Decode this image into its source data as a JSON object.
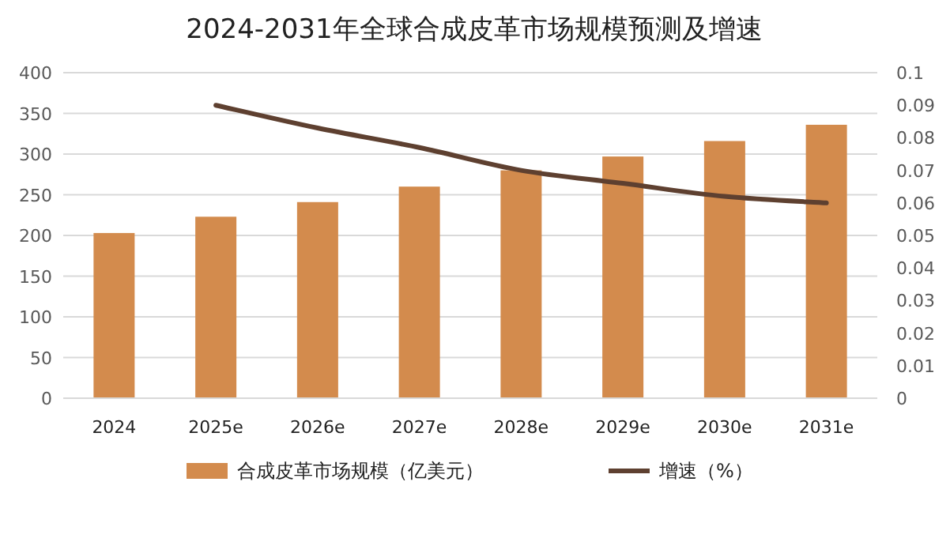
{
  "chart_data": {
    "type": "bar",
    "title": "2024-2031年全球合成皮革市场规模预测及增速",
    "categories": [
      "2024",
      "2025e",
      "2026e",
      "2027e",
      "2028e",
      "2029e",
      "2030e",
      "2031e"
    ],
    "series": [
      {
        "name": "合成皮革市场规模（亿美元）",
        "color": "#d38b4d",
        "values": [
          203,
          223,
          241,
          260,
          280,
          297,
          316,
          336
        ]
      },
      {
        "name": "增速（%）",
        "type": "line",
        "axis": "y2",
        "color": "#5e4030",
        "values": [
          null,
          0.09,
          0.083,
          0.077,
          0.07,
          0.066,
          0.062,
          0.06
        ]
      }
    ],
    "ylim": [
      0,
      400
    ],
    "yticks": [
      0,
      50,
      100,
      150,
      200,
      250,
      300,
      350,
      400
    ],
    "y2lim": [
      0,
      0.1
    ],
    "y2ticks": [
      0,
      0.01,
      0.02,
      0.03,
      0.04,
      0.05,
      0.06,
      0.07,
      0.08,
      0.09,
      0.1
    ],
    "grid": "y",
    "legend": "bottom"
  }
}
